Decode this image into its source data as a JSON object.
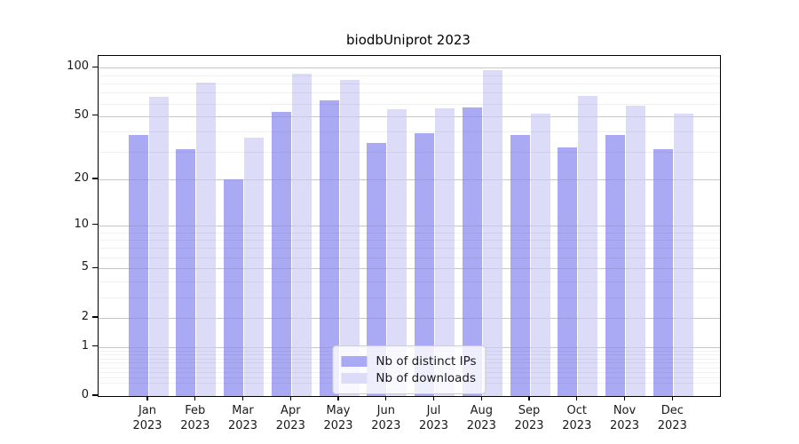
{
  "chart_data": {
    "type": "bar",
    "title": "biodbUniprot 2023",
    "xlabel": "",
    "ylabel": "",
    "yscale": "log1p",
    "ylim": [
      0,
      118
    ],
    "grid": true,
    "legend_position": "lower center",
    "year": "2023",
    "categories": [
      "Jan",
      "Feb",
      "Mar",
      "Apr",
      "May",
      "Jun",
      "Jul",
      "Aug",
      "Sep",
      "Oct",
      "Nov",
      "Dec"
    ],
    "series": [
      {
        "name": "Nb of distinct IPs",
        "color": "#a9a9f4",
        "values": [
          38,
          31,
          20,
          53,
          63,
          34,
          39,
          57,
          38,
          32,
          38,
          31
        ]
      },
      {
        "name": "Nb of downloads",
        "color": "#dcdcf9",
        "values": [
          66,
          81,
          37,
          92,
          84,
          55,
          56,
          97,
          52,
          67,
          58,
          52
        ]
      }
    ],
    "y_major_ticks": [
      0,
      1,
      2,
      5,
      10,
      20,
      50,
      100
    ],
    "y_minor_gridlines": [
      0.2,
      0.3,
      0.4,
      0.5,
      0.6,
      0.7,
      0.8,
      0.9,
      3,
      4,
      6,
      7,
      8,
      9,
      30,
      40,
      60,
      70,
      80,
      90
    ]
  }
}
